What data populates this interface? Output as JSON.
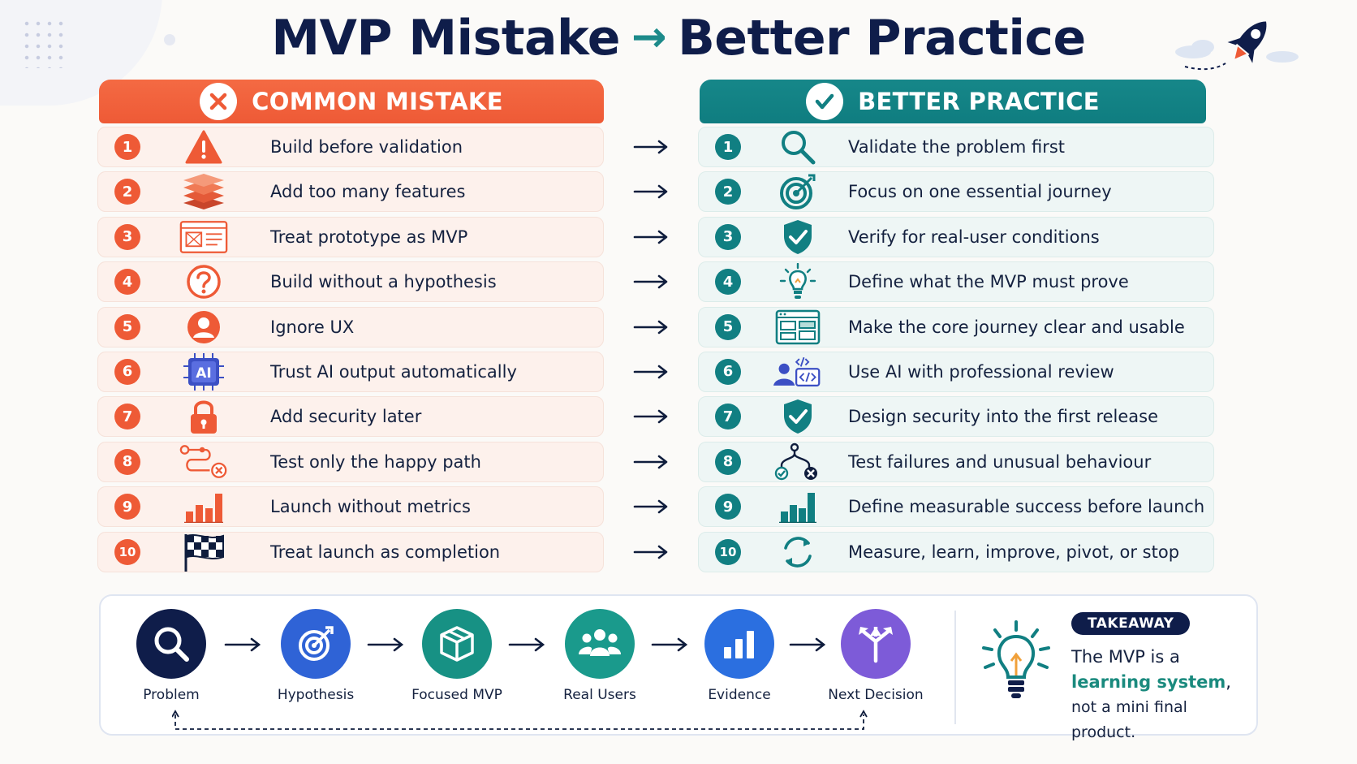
{
  "title": {
    "left": "MVP Mistake",
    "arrow": "→",
    "right": "Better Practice"
  },
  "columns": {
    "mistake_header": "COMMON MISTAKE",
    "practice_header": "BETTER PRACTICE"
  },
  "mistakes": [
    {
      "num": "1",
      "text": "Build before validation",
      "icon": "warning-icon"
    },
    {
      "num": "2",
      "text": "Add too many features",
      "icon": "layers-icon"
    },
    {
      "num": "3",
      "text": "Treat prototype as MVP",
      "icon": "wireframe-icon"
    },
    {
      "num": "4",
      "text": "Build without a hypothesis",
      "icon": "question-icon"
    },
    {
      "num": "5",
      "text": "Ignore UX",
      "icon": "user-icon"
    },
    {
      "num": "6",
      "text": "Trust AI output automatically",
      "icon": "ai-chip-icon"
    },
    {
      "num": "7",
      "text": "Add security later",
      "icon": "lock-icon"
    },
    {
      "num": "8",
      "text": "Test only the happy path",
      "icon": "path-fail-icon"
    },
    {
      "num": "9",
      "text": "Launch without metrics",
      "icon": "bar-chart-icon"
    },
    {
      "num": "10",
      "text": "Treat launch as completion",
      "icon": "checkered-flag-icon"
    }
  ],
  "practices": [
    {
      "num": "1",
      "text": "Validate the problem first",
      "icon": "search-icon"
    },
    {
      "num": "2",
      "text": "Focus on one essential journey",
      "icon": "target-icon"
    },
    {
      "num": "3",
      "text": "Verify for real-user conditions",
      "icon": "shield-check-icon"
    },
    {
      "num": "4",
      "text": "Define what the MVP must prove",
      "icon": "lightbulb-icon"
    },
    {
      "num": "5",
      "text": "Make the core journey clear and usable",
      "icon": "layout-icon"
    },
    {
      "num": "6",
      "text": "Use AI with professional review",
      "icon": "user-code-icon"
    },
    {
      "num": "7",
      "text": "Design security into the first release",
      "icon": "shield-check-icon"
    },
    {
      "num": "8",
      "text": "Test failures and unusual behaviour",
      "icon": "path-branch-icon"
    },
    {
      "num": "9",
      "text": "Define measurable success before launch",
      "icon": "bar-chart-icon"
    },
    {
      "num": "10",
      "text": "Measure, learn, improve, pivot, or stop",
      "icon": "cycle-icon"
    }
  ],
  "row_arrow": "→",
  "flow": [
    {
      "label": "Problem",
      "icon": "search-icon",
      "color": "#0f1d4a"
    },
    {
      "label": "Hypothesis",
      "icon": "target-icon",
      "color": "#2f63d6"
    },
    {
      "label": "Focused MVP",
      "icon": "box-icon",
      "color": "#179184"
    },
    {
      "label": "Real Users",
      "icon": "users-icon",
      "color": "#1a9a8c"
    },
    {
      "label": "Evidence",
      "icon": "bar-chart-icon",
      "color": "#2b6fe0"
    },
    {
      "label": "Next Decision",
      "icon": "direction-arrows-icon",
      "color": "#7d5bd8"
    }
  ],
  "takeaway": {
    "badge": "TAKEAWAY",
    "line1": "The MVP is a",
    "highlight": "learning system",
    "comma": ",",
    "line3": "not a mini final product."
  },
  "colors": {
    "mistake_accent": "#ee5a36",
    "practice_accent": "#117f82",
    "navy": "#0f1d4a"
  }
}
